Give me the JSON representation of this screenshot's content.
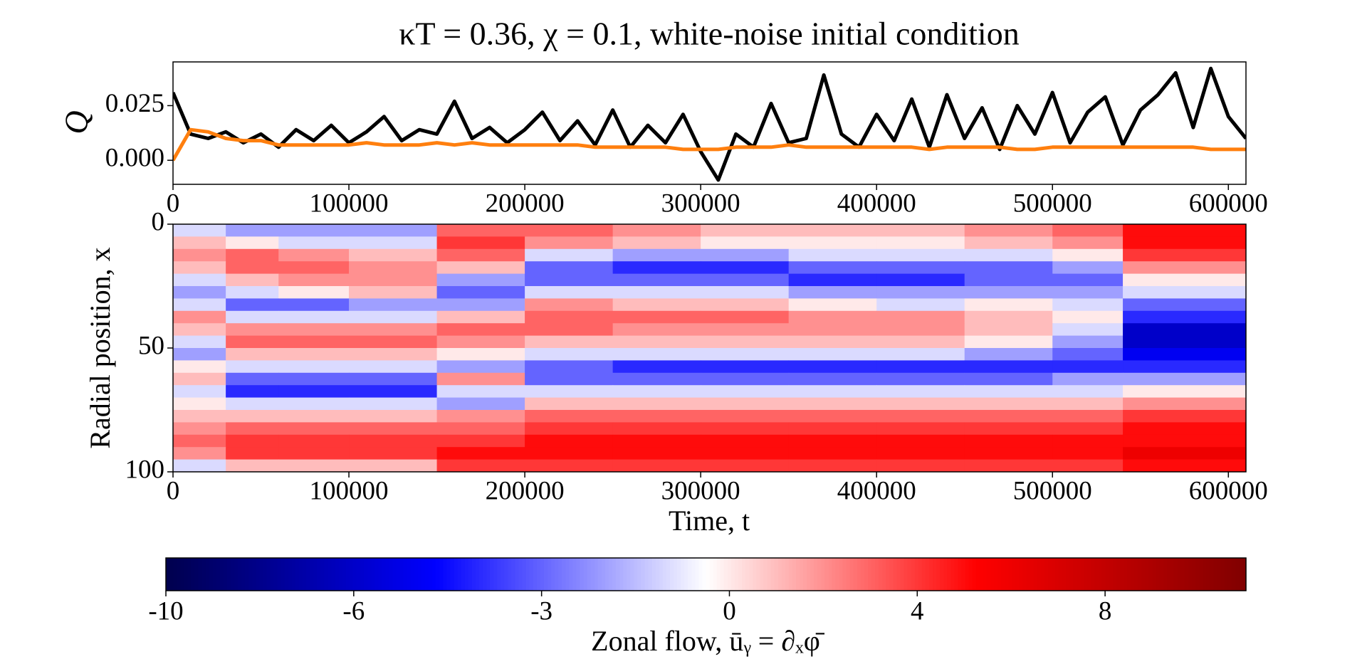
{
  "chart_data": [
    {
      "type": "line",
      "title": "κT = 0.36, χ = 0.1, white-noise initial condition",
      "ylabel": "Q",
      "x": [
        0,
        10000,
        20000,
        30000,
        40000,
        50000,
        60000,
        70000,
        80000,
        90000,
        100000,
        110000,
        120000,
        130000,
        140000,
        150000,
        160000,
        170000,
        180000,
        190000,
        200000,
        210000,
        220000,
        230000,
        240000,
        250000,
        260000,
        270000,
        280000,
        290000,
        300000,
        310000,
        320000,
        330000,
        340000,
        350000,
        360000,
        370000,
        380000,
        390000,
        400000,
        410000,
        420000,
        430000,
        440000,
        450000,
        460000,
        470000,
        480000,
        490000,
        500000,
        510000,
        520000,
        530000,
        540000,
        550000,
        560000,
        570000,
        580000,
        590000,
        600000,
        610000
      ],
      "series": [
        {
          "color": "#000000",
          "values": [
            0.031,
            0.012,
            0.01,
            0.013,
            0.008,
            0.012,
            0.006,
            0.014,
            0.009,
            0.016,
            0.008,
            0.013,
            0.02,
            0.009,
            0.014,
            0.012,
            0.027,
            0.01,
            0.015,
            0.008,
            0.014,
            0.022,
            0.009,
            0.018,
            0.007,
            0.023,
            0.006,
            0.016,
            0.008,
            0.021,
            0.004,
            -0.009,
            0.012,
            0.006,
            0.026,
            0.008,
            0.01,
            0.039,
            0.012,
            0.006,
            0.021,
            0.009,
            0.028,
            0.006,
            0.03,
            0.01,
            0.024,
            0.005,
            0.025,
            0.012,
            0.031,
            0.008,
            0.022,
            0.029,
            0.007,
            0.023,
            0.03,
            0.04,
            0.015,
            0.042,
            0.02,
            0.01
          ]
        },
        {
          "color": "#ff7f0e",
          "values": [
            0.0,
            0.014,
            0.013,
            0.01,
            0.009,
            0.009,
            0.007,
            0.007,
            0.007,
            0.007,
            0.007,
            0.008,
            0.007,
            0.007,
            0.007,
            0.008,
            0.007,
            0.008,
            0.007,
            0.007,
            0.007,
            0.007,
            0.007,
            0.007,
            0.006,
            0.006,
            0.006,
            0.006,
            0.006,
            0.005,
            0.005,
            0.005,
            0.006,
            0.006,
            0.006,
            0.007,
            0.006,
            0.006,
            0.006,
            0.006,
            0.006,
            0.006,
            0.006,
            0.005,
            0.006,
            0.006,
            0.006,
            0.006,
            0.005,
            0.005,
            0.006,
            0.006,
            0.006,
            0.006,
            0.006,
            0.006,
            0.006,
            0.006,
            0.006,
            0.005,
            0.005,
            0.005
          ]
        }
      ],
      "xlim": [
        0,
        610000
      ],
      "xticks": [
        0,
        100000,
        200000,
        300000,
        400000,
        500000,
        600000
      ],
      "ylim": [
        -0.011,
        0.045
      ],
      "yticks": [
        {
          "value": 0,
          "label": "0.000"
        },
        {
          "value": 0.025,
          "label": "0.025"
        }
      ]
    },
    {
      "type": "heatmap",
      "xlabel": "Time, t",
      "ylabel": "Radial position, x",
      "x_edges": [
        0,
        30000,
        60000,
        100000,
        150000,
        200000,
        250000,
        300000,
        350000,
        400000,
        450000,
        500000,
        540000,
        610000
      ],
      "y_edges": [
        0,
        5,
        10,
        15,
        20,
        25,
        30,
        35,
        40,
        45,
        50,
        55,
        60,
        65,
        70,
        75,
        80,
        85,
        90,
        95,
        100
      ],
      "values": [
        [
          -1,
          -2,
          -2,
          -2,
          3,
          3,
          2,
          1,
          1,
          1,
          2,
          3,
          5
        ],
        [
          1,
          0,
          -1,
          -1,
          4,
          2,
          1,
          0,
          0,
          0,
          1,
          2,
          5
        ],
        [
          2,
          3,
          2,
          1,
          3,
          -1,
          -2,
          -2,
          -1,
          -1,
          -1,
          0,
          4
        ],
        [
          1,
          3,
          3,
          2,
          1,
          -3,
          -4,
          -4,
          -3,
          -3,
          -3,
          -2,
          2
        ],
        [
          -1,
          1,
          2,
          2,
          -2,
          -3,
          -3,
          -3,
          -4,
          -4,
          -3,
          -3,
          0
        ],
        [
          -2,
          -1,
          0,
          1,
          -3,
          -1,
          -1,
          -1,
          -2,
          -2,
          -2,
          -2,
          -1
        ],
        [
          -1,
          -3,
          -3,
          -2,
          -2,
          2,
          1,
          1,
          0,
          -1,
          0,
          -1,
          -3
        ],
        [
          2,
          -1,
          -1,
          -1,
          1,
          3,
          3,
          3,
          2,
          2,
          1,
          0,
          -4
        ],
        [
          1,
          2,
          2,
          2,
          3,
          3,
          2,
          2,
          2,
          2,
          1,
          -1,
          -6
        ],
        [
          -1,
          3,
          3,
          3,
          2,
          1,
          1,
          1,
          1,
          1,
          0,
          -2,
          -6
        ],
        [
          -2,
          1,
          1,
          1,
          0,
          -1,
          -1,
          -1,
          -1,
          -1,
          -2,
          -3,
          -5
        ],
        [
          0,
          -1,
          -1,
          -1,
          -2,
          -3,
          -4,
          -4,
          -4,
          -4,
          -4,
          -4,
          -4
        ],
        [
          1,
          -3,
          -3,
          -3,
          2,
          -3,
          -3,
          -3,
          -3,
          -3,
          -3,
          -2,
          -2
        ],
        [
          -1,
          -4,
          -4,
          -4,
          -1,
          -1,
          -1,
          -1,
          -1,
          -1,
          -1,
          -1,
          0
        ],
        [
          0,
          -1,
          -1,
          -1,
          -2,
          1,
          1,
          1,
          1,
          1,
          1,
          1,
          2
        ],
        [
          1,
          1,
          1,
          1,
          2,
          3,
          3,
          3,
          3,
          3,
          3,
          3,
          4
        ],
        [
          2,
          3,
          3,
          3,
          3,
          4,
          4,
          4,
          4,
          4,
          4,
          4,
          5
        ],
        [
          3,
          4,
          4,
          4,
          4,
          5,
          5,
          5,
          5,
          5,
          5,
          5,
          5
        ],
        [
          2,
          4,
          4,
          4,
          5,
          5,
          5,
          5,
          5,
          5,
          5,
          5,
          6
        ],
        [
          -1,
          1,
          1,
          1,
          4,
          4,
          4,
          4,
          4,
          4,
          4,
          4,
          5
        ]
      ],
      "xlim": [
        0,
        610000
      ],
      "xticks": [
        0,
        100000,
        200000,
        300000,
        400000,
        500000,
        600000
      ],
      "ylim": [
        100,
        0
      ],
      "yticks": [
        0,
        50,
        100
      ],
      "cmap": "seismic"
    },
    {
      "type": "colorbar",
      "label": "Zonal flow, ūᵧ = ∂ₓφ̄",
      "clim": [
        -10,
        11
      ],
      "ticks": [
        -10,
        -6,
        -3,
        0,
        4,
        8
      ],
      "cmap": "seismic"
    }
  ]
}
